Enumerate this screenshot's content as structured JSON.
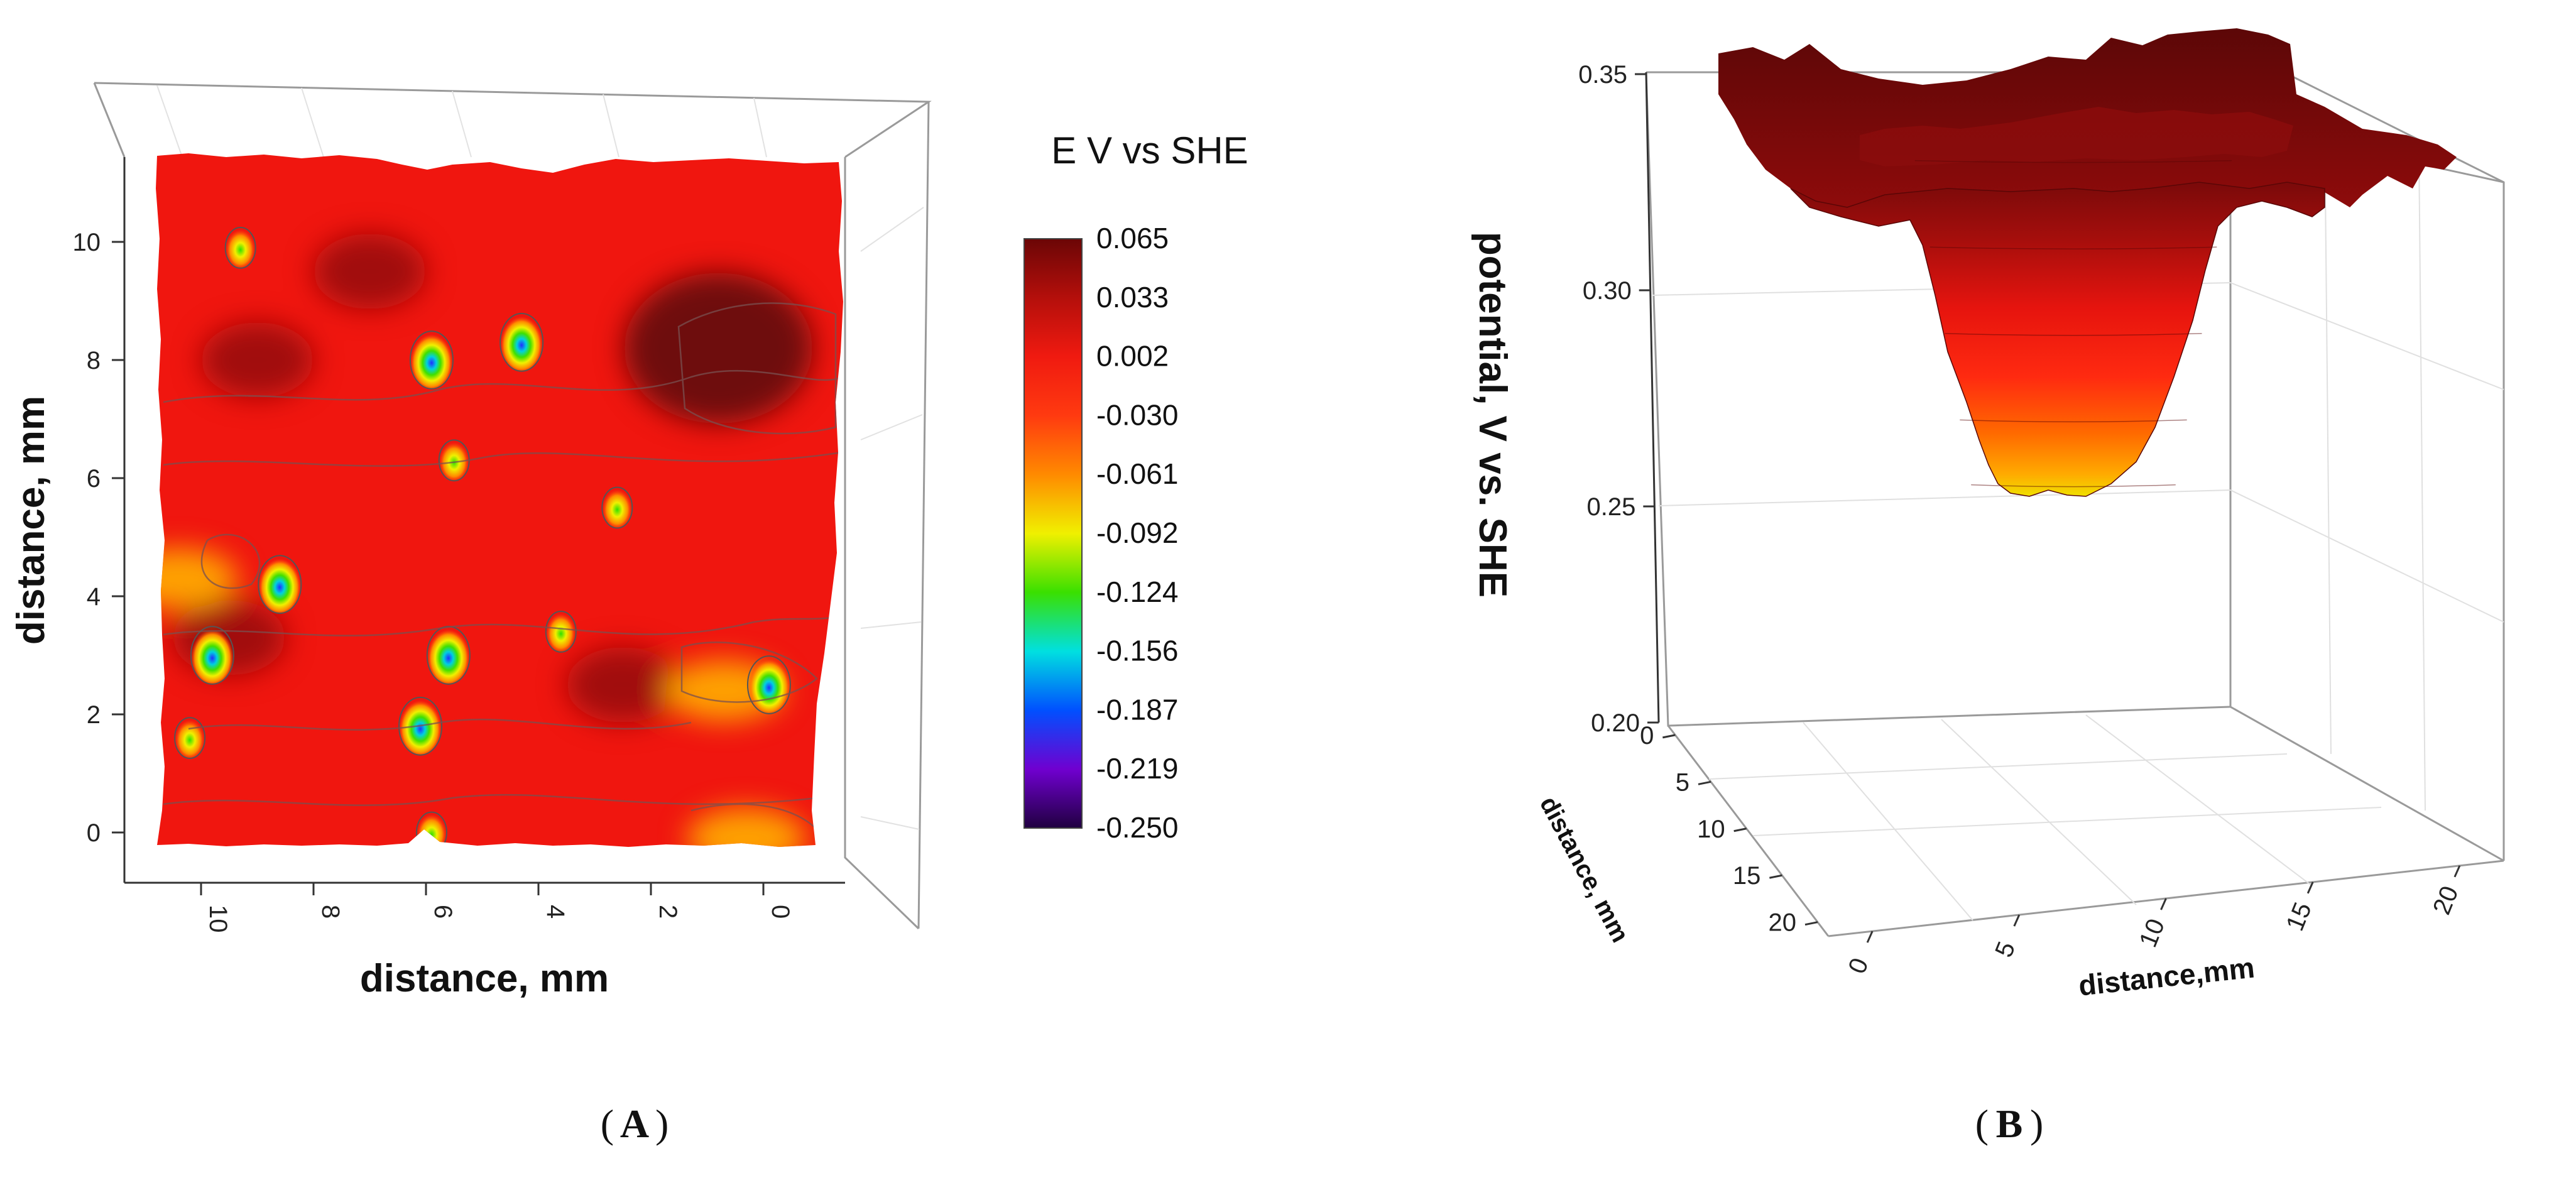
{
  "colors": {
    "accent_red": "#e8120c",
    "dark_red": "#7a0a0a",
    "contour": "#6b6b6b",
    "axis": "#333333",
    "grid": "#d8d8d8"
  },
  "chart_data": [
    {
      "panel": "A",
      "type": "heatmap",
      "title": "",
      "xlabel": "distance, mm",
      "ylabel": "distance, mm",
      "x_ticks": [
        "10",
        "8",
        "6",
        "4",
        "2",
        "0"
      ],
      "y_ticks": [
        "0",
        "2",
        "4",
        "6",
        "8",
        "10"
      ],
      "xlim": [
        11,
        -1
      ],
      "ylim": [
        -1,
        11
      ],
      "colorbar": {
        "title": "E V vs SHE",
        "labels": [
          "0.065",
          "0.033",
          "0.002",
          "-0.030",
          "-0.061",
          "-0.092",
          "-0.124",
          "-0.156",
          "-0.187",
          "-0.219",
          "-0.250"
        ],
        "colors": [
          "#6b0606",
          "#b40f0b",
          "#f01a10",
          "#ff3a10",
          "#ff8a00",
          "#f0f000",
          "#3ae000",
          "#00e0e0",
          "#0050ff",
          "#7000d0",
          "#200040"
        ]
      },
      "background_value": -0.02,
      "features": [
        {
          "kind": "dark",
          "x": 0.8,
          "y": 8.2,
          "value": 0.06
        },
        {
          "kind": "dark",
          "x": 9.0,
          "y": 8.0,
          "value": 0.04
        },
        {
          "kind": "dark",
          "x": 7.0,
          "y": 9.5,
          "value": 0.035
        },
        {
          "kind": "dark",
          "x": 9.5,
          "y": 3.3,
          "value": 0.03
        },
        {
          "kind": "dark",
          "x": 2.5,
          "y": 2.5,
          "value": 0.035
        },
        {
          "kind": "pit",
          "x": 5.9,
          "y": 8.0,
          "value": -0.2
        },
        {
          "kind": "pit",
          "x": 4.3,
          "y": 8.3,
          "value": -0.13
        },
        {
          "kind": "pit",
          "x": 8.6,
          "y": 4.2,
          "value": -0.22
        },
        {
          "kind": "pit",
          "x": 9.8,
          "y": 3.0,
          "value": -0.14
        },
        {
          "kind": "pit",
          "x": 5.6,
          "y": 3.0,
          "value": -0.15
        },
        {
          "kind": "pit",
          "x": 6.1,
          "y": 1.8,
          "value": -0.13
        },
        {
          "kind": "pit",
          "x": 10.2,
          "y": 1.6,
          "value": -0.12
        },
        {
          "kind": "pit",
          "x": 5.5,
          "y": 6.3,
          "value": -0.1
        },
        {
          "kind": "pit",
          "x": 3.6,
          "y": 3.4,
          "value": -0.1
        },
        {
          "kind": "pit",
          "x": 2.6,
          "y": 5.5,
          "value": -0.08
        },
        {
          "kind": "pit",
          "x": 9.3,
          "y": 9.9,
          "value": -0.08
        },
        {
          "kind": "pit",
          "x": -0.1,
          "y": 2.5,
          "value": -0.14
        },
        {
          "kind": "pit",
          "x": 5.9,
          "y": 0.0,
          "value": -0.12
        },
        {
          "kind": "warm",
          "x": 0.7,
          "y": 2.4,
          "value": -0.07
        },
        {
          "kind": "warm",
          "x": 0.3,
          "y": -0.1,
          "value": -0.06
        },
        {
          "kind": "warm",
          "x": 10.4,
          "y": 4.3,
          "value": -0.07
        }
      ]
    },
    {
      "panel": "B",
      "type": "surface",
      "title": "",
      "xlabel": "distance,mm",
      "ylabel": "distance, mm",
      "zlabel": "potential, V vs. SHE",
      "x_ticks": [
        "0",
        "5",
        "10",
        "15",
        "20"
      ],
      "y_ticks": [
        "0",
        "5",
        "10",
        "15",
        "20"
      ],
      "z_ticks": [
        "0.20",
        "0.25",
        "0.30",
        "0.35"
      ],
      "zlim": [
        0.2,
        0.35
      ],
      "profile_x": [
        0,
        1,
        2,
        3,
        4,
        5,
        6,
        7,
        8,
        9,
        10,
        11,
        12,
        13,
        14,
        15,
        16,
        17,
        18,
        19,
        20
      ],
      "profile_min_potential": [
        0.338,
        0.336,
        0.335,
        0.332,
        0.325,
        0.31,
        0.282,
        0.258,
        0.246,
        0.243,
        0.244,
        0.25,
        0.262,
        0.285,
        0.31,
        0.325,
        0.33,
        0.333,
        0.335,
        0.336,
        0.337
      ],
      "rim_potential": 0.348
    }
  ],
  "panel_labels": [
    "A",
    "B"
  ]
}
